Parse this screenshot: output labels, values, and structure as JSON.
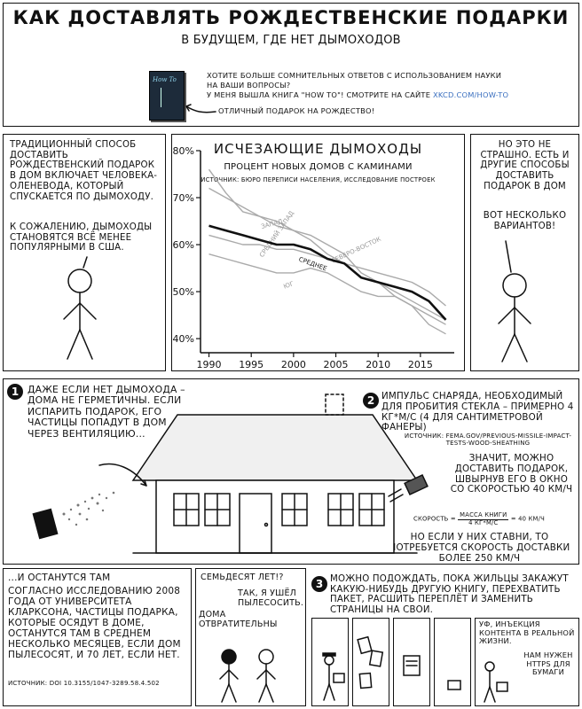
{
  "title": "КАК ДОСТАВЛЯТЬ РОЖДЕСТВЕНСКИЕ ПОДАРКИ",
  "subtitle": "В БУДУЩЕМ, ГДЕ НЕТ ДЫМОХОДОВ",
  "promo": {
    "line1": "ХОТИТЕ БОЛЬШЕ СОМНИТЕЛЬНЫХ ОТВЕТОВ С ИСПОЛЬЗОВАНИЕМ НАУКИ",
    "line2": "НА ВАШИ ВОПРОСЫ?",
    "line3_prefix": "У МЕНЯ ВЫШЛА КНИГА \"HOW TO\"! СМОТРИТЕ НА САЙТЕ",
    "link": "XKCD.COM/HOW-TO",
    "caption": "ОТЛИЧНЫЙ ПОДАРОК НА РОЖДЕСТВО!",
    "book_cover": "How To"
  },
  "panel_left": {
    "para1": "ТРАДИЦИОННЫЙ СПОСОБ ДОСТАВИТЬ РОЖДЕСТВЕНСКИЙ ПОДАРОК В ДОМ ВКЛЮЧАЕТ ЧЕЛОВЕКА-ОЛЕНЕВОДА, КОТОРЫЙ СПУСКАЕТСЯ ПО ДЫМОХОДУ.",
    "para2": "К СОЖАЛЕНИЮ, ДЫМОХОДЫ СТАНОВЯТСЯ ВСЁ МЕНЕЕ ПОПУЛЯРНЫМИ В США."
  },
  "chart_data": {
    "type": "line",
    "title": "ИСЧЕЗАЮЩИЕ ДЫМОХОДЫ",
    "subtitle": "ПРОЦЕНТ НОВЫХ ДОМОВ С КАМИНАМИ",
    "source": "ИСТОЧНИК: БЮРО ПЕРЕПИСИ НАСЕЛЕНИЯ, ИССЛЕДОВАНИЕ ПОСТРОЕК",
    "xlim": [
      1989,
      2019
    ],
    "ylim": [
      37,
      80
    ],
    "x_ticks": [
      1990,
      1995,
      2000,
      2005,
      2010,
      2015
    ],
    "y_ticks": [
      {
        "value": 80,
        "label": "80%"
      },
      {
        "value": 70,
        "label": "70%"
      },
      {
        "value": 60,
        "label": "60%"
      },
      {
        "value": 50,
        "label": "50%"
      },
      {
        "value": 40,
        "label": "40%"
      }
    ],
    "grid": false,
    "series": [
      {
        "name": "ЗАПАД",
        "emphasis": false,
        "x": [
          1990,
          1992,
          1994,
          1996,
          1998,
          2000,
          2002,
          2004,
          2006,
          2008,
          2010,
          2012,
          2014,
          2016,
          2018
        ],
        "y": [
          76,
          71,
          67,
          66,
          65,
          63,
          62,
          60,
          58,
          54,
          52,
          49,
          47,
          43,
          41
        ]
      },
      {
        "name": "СРЕДНИЙ ЗАПАД",
        "emphasis": false,
        "x": [
          1990,
          1992,
          1994,
          1996,
          1998,
          2000,
          2002,
          2004,
          2006,
          2008,
          2010,
          2012,
          2014,
          2016,
          2018
        ],
        "y": [
          72,
          70,
          68,
          66,
          64,
          63,
          61,
          58,
          56,
          53,
          52,
          50,
          48,
          46,
          44
        ]
      },
      {
        "name": "ЮГ",
        "emphasis": false,
        "x": [
          1990,
          1992,
          1994,
          1996,
          1998,
          2000,
          2002,
          2004,
          2006,
          2008,
          2010,
          2012,
          2014,
          2016,
          2018
        ],
        "y": [
          58,
          57,
          56,
          55,
          54,
          54,
          55,
          54,
          52,
          50,
          49,
          49,
          47,
          45,
          43
        ]
      },
      {
        "name": "СЕВЕРО-ВОСТОК",
        "emphasis": false,
        "x": [
          1990,
          1992,
          1994,
          1996,
          1998,
          2000,
          2002,
          2004,
          2006,
          2008,
          2010,
          2012,
          2014,
          2016,
          2018
        ],
        "y": [
          62,
          61,
          60,
          60,
          59,
          59,
          58,
          57,
          56,
          55,
          54,
          53,
          52,
          50,
          47
        ]
      },
      {
        "name": "СРЕДНЕЕ",
        "emphasis": true,
        "x": [
          1990,
          1992,
          1994,
          1996,
          1998,
          2000,
          2002,
          2004,
          2006,
          2008,
          2010,
          2012,
          2014,
          2016,
          2018
        ],
        "y": [
          64,
          63,
          62,
          61,
          60,
          60,
          59,
          57,
          56,
          53,
          52,
          51,
          50,
          48,
          44
        ]
      }
    ]
  },
  "panel_right": {
    "text1": "НО ЭТО НЕ СТРАШНО. ЕСТЬ И ДРУГИЕ СПОСОБЫ ДОСТАВИТЬ ПОДАРОК В ДОМ",
    "text2": "ВОТ НЕСКОЛЬКО ВАРИАНТОВ!"
  },
  "step1": {
    "number": "1",
    "text": "ДАЖЕ ЕСЛИ НЕТ ДЫМОХОДА – ДОМА НЕ ГЕРМЕТИЧНЫ. ЕСЛИ ИСПАРИТЬ ПОДАРОК, ЕГО ЧАСТИЦЫ ПОПАДУТ В ДОМ ЧЕРЕЗ ВЕНТИЛЯЦИЮ..."
  },
  "step2": {
    "number": "2",
    "text": "ИМПУЛЬС СНАРЯДА, НЕОБХОДИМЫЙ ДЛЯ ПРОБИТИЯ СТЕКЛА – ПРИМЕРНО 4 КГ*М/С (4 ДЛЯ САНТИМЕТРОВОЙ ФАНЕРЫ)",
    "source": "ИСТОЧНИК: FEMA.GOV/PREVIOUS-MISSILE-IMPACT-TESTS-WOOD-SHEATHING",
    "text_b": "ЗНАЧИТ, МОЖНО ДОСТАВИТЬ ПОДАРОК, ШВЫРНУВ ЕГО В ОКНО СО СКОРОСТЬЮ 40 КМ/Ч",
    "formula_left": "СКОРОСТЬ =",
    "formula_num": "МАССА КНИГИ",
    "formula_den": "4 КГ*М/С",
    "formula_right": "= 40 КМ/Ч",
    "text_c": "НО ЕСЛИ У НИХ СТАВНИ, ТО ПОТРЕБУЕТСЯ СКОРОСТЬ ДОСТАВКИ БОЛЕЕ 250 КМ/Ч"
  },
  "bottom_left": {
    "heading": "...И ОСТАНУТСЯ ТАМ",
    "text": "СОГЛАСНО ИССЛЕДОВАНИЮ 2008 ГОДА ОТ УНИВЕРСИТЕТА КЛАРКСОНА, ЧАСТИЦЫ ПОДАРКА, КОТОРЫЕ ОСЯДУТ В ДОМЕ, ОСТАНУТСЯ ТАМ В СРЕДНЕМ НЕСКОЛЬКО МЕСЯЦЕВ, ЕСЛИ ДОМ ПЫЛЕСОСЯТ, И 70 ЛЕТ, ЕСЛИ НЕТ.",
    "source": "ИСТОЧНИК: DOI 10.3155/1047-3289.58.4.502"
  },
  "dialog": {
    "line1": "СЕМЬДЕСЯТ ЛЕТ!?",
    "line2": "ДОМА ОТВРАТИТЕЛЬНЫ",
    "line3": "ТАК, Я УШЁЛ ПЫЛЕСОСИТЬ."
  },
  "step3": {
    "number": "3",
    "text": "МОЖНО ПОДОЖДАТЬ, ПОКА ЖИЛЬЦЫ ЗАКАЖУТ КАКУЮ-НИБУДЬ ДРУГУЮ КНИГУ, ПЕРЕХВАТИТЬ ПАКЕТ, РАСШИТЬ ПЕРЕПЛЁТ И ЗАМЕНИТЬ СТРАНИЦЫ НА СВОИ.",
    "last_panel_a": "УФ, ИНЪЕКЦИЯ КОНТЕНТА В РЕАЛЬНОЙ ЖИЗНИ.",
    "last_panel_b": "НАМ НУЖЕН HTTPS ДЛЯ БУМАГИ"
  }
}
